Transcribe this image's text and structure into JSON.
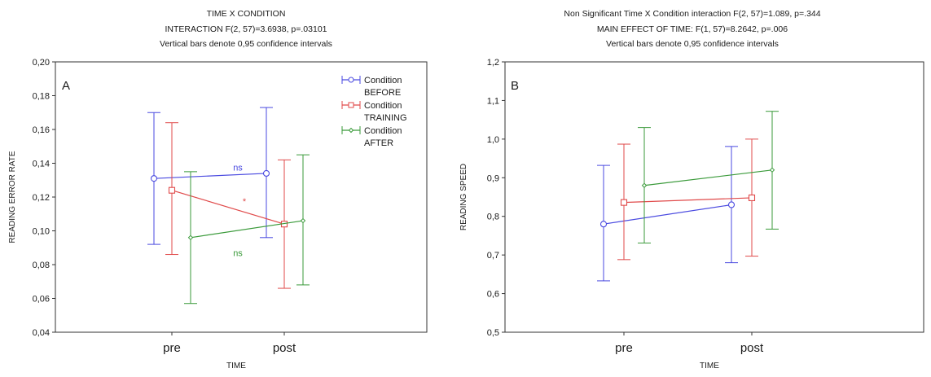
{
  "colors": {
    "before": "#4a4ae0",
    "training": "#e04a4a",
    "after": "#3a9a3a",
    "frame": "#333333"
  },
  "chart_data": [
    {
      "type": "line",
      "panel_label": "A",
      "title_lines": [
        "TIME X CONDITION",
        "INTERACTION F(2, 57)=3.6938, p=.03101",
        "Vertical bars denote 0,95 confidence intervals"
      ],
      "xlabel": "TIME",
      "ylabel": "READING ERROR RATE",
      "categories": [
        "pre",
        "post"
      ],
      "ylim": [
        0.04,
        0.2
      ],
      "yticks": [
        "0,04",
        "0,06",
        "0,08",
        "0,10",
        "0,12",
        "0,14",
        "0,16",
        "0,18",
        "0,20"
      ],
      "legend_position": "top-right",
      "legend": [
        {
          "line1": "Condition",
          "line2": "BEFORE"
        },
        {
          "line1": "Condition",
          "line2": "TRAINING"
        },
        {
          "line1": "Condition",
          "line2": "AFTER"
        }
      ],
      "series": [
        {
          "key": "before",
          "marker": "circle",
          "values": [
            0.131,
            0.134
          ],
          "lower": [
            0.092,
            0.096
          ],
          "upper": [
            0.17,
            0.173
          ]
        },
        {
          "key": "training",
          "marker": "square",
          "values": [
            0.124,
            0.104
          ],
          "lower": [
            0.086,
            0.066
          ],
          "upper": [
            0.164,
            0.142
          ]
        },
        {
          "key": "after",
          "marker": "diamond",
          "values": [
            0.096,
            0.106
          ],
          "lower": [
            0.057,
            0.068
          ],
          "upper": [
            0.135,
            0.145
          ]
        }
      ],
      "annotations": [
        {
          "text": "ns",
          "series": "before",
          "x": 0.5,
          "y": 0.1375
        },
        {
          "text": "*",
          "series": "training",
          "x": 0.5,
          "y": 0.1175
        },
        {
          "text": "ns",
          "series": "after",
          "x": 0.5,
          "y": 0.087
        }
      ]
    },
    {
      "type": "line",
      "panel_label": "B",
      "title_lines": [
        "Non Significant Time X Condition interaction F(2, 57)=1.089, p=.344",
        "MAIN EFFECT OF TIME: F(1, 57)=8.2642, p=.006",
        "Vertical bars denote 0,95 confidence intervals"
      ],
      "xlabel": "TIME",
      "ylabel": "READING SPEED",
      "categories": [
        "pre",
        "post"
      ],
      "ylim": [
        0.5,
        1.2
      ],
      "yticks": [
        "0,5",
        "0,6",
        "0,7",
        "0,8",
        "0,9",
        "1,0",
        "1,1",
        "1,2"
      ],
      "series": [
        {
          "key": "before",
          "marker": "circle",
          "values": [
            0.78,
            0.83
          ],
          "lower": [
            0.633,
            0.68
          ],
          "upper": [
            0.932,
            0.981
          ]
        },
        {
          "key": "training",
          "marker": "square",
          "values": [
            0.836,
            0.848
          ],
          "lower": [
            0.688,
            0.697
          ],
          "upper": [
            0.987,
            1.0
          ]
        },
        {
          "key": "after",
          "marker": "diamond",
          "values": [
            0.88,
            0.92
          ],
          "lower": [
            0.731,
            0.767
          ],
          "upper": [
            1.03,
            1.072
          ]
        }
      ]
    }
  ]
}
